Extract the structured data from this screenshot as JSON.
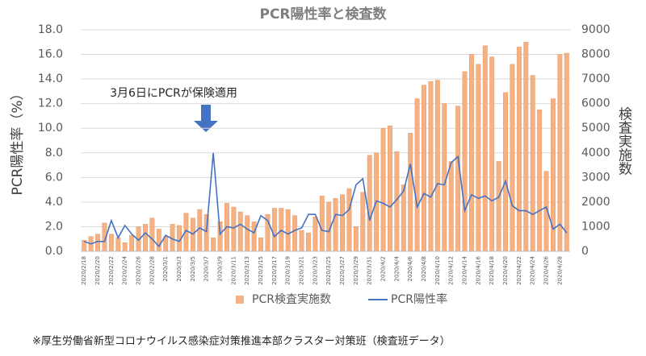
{
  "chart_data": {
    "type": "bar-line",
    "title": "PCR陽性率と検査数",
    "y_label": "PCR陽性率（%）",
    "y2_label": "検査実施数",
    "annotation": "3月6日にPCRが保険適用",
    "footnote": "※厚生労働省新型コロナウイルス感染症対策推進本部クラスター対策班（検査班データ）",
    "categories": [
      "2020/2/18",
      null,
      "2020/2/20",
      null,
      "2020/2/22",
      null,
      "2020/2/24",
      null,
      "2020/2/26",
      null,
      "2020/2/28",
      null,
      "2020/3/1",
      null,
      "2020/3/3",
      null,
      "2020/3/5",
      null,
      "2020/3/7",
      null,
      "2020/3/9",
      null,
      "2020/3/11",
      null,
      "2020/3/13",
      null,
      "2020/3/15",
      null,
      "2020/3/17",
      null,
      "2020/3/19",
      null,
      "2020/3/21",
      null,
      "2020/3/23",
      null,
      "2020/3/25",
      null,
      "2020/3/27",
      null,
      "2020/3/29",
      null,
      "2020/3/31",
      null,
      "2020/4/2",
      null,
      "2020/4/4",
      null,
      "2020/4/6",
      null,
      "2020/4/8",
      null,
      "2020/4/10",
      null,
      "2020/4/12",
      null,
      "2020/4/14",
      null,
      "2020/4/16",
      null,
      "2020/4/18",
      null,
      "2020/4/20",
      null,
      "2020/4/22",
      null,
      "2020/4/24",
      null,
      "2020/4/26",
      null,
      "2020/4/28",
      null
    ],
    "series": [
      {
        "name": "PCR検査実施数",
        "type": "bar",
        "axis": "y2",
        "color": "#f4b183",
        "values": [
          450,
          600,
          700,
          1150,
          700,
          550,
          350,
          650,
          1000,
          1100,
          1350,
          900,
          600,
          1100,
          1050,
          1550,
          1350,
          1700,
          1500,
          550,
          1200,
          1950,
          1800,
          1600,
          1450,
          1200,
          550,
          1500,
          1750,
          1750,
          1700,
          1450,
          850,
          750,
          1400,
          2250,
          2000,
          2150,
          2300,
          2550,
          1000,
          2400,
          3900,
          4000,
          5000,
          5100,
          4050,
          2700,
          4800,
          6200,
          6750,
          6900,
          6950,
          6000,
          3650,
          5900,
          7300,
          8000,
          7600,
          8350,
          7900,
          3650,
          6450,
          7600,
          8300,
          8500,
          7150,
          5750,
          3250,
          6200,
          8000,
          8050
        ]
      },
      {
        "name": "PCR陽性率",
        "type": "line",
        "axis": "y",
        "color": "#4472c4",
        "values": [
          0.8,
          0.6,
          0.8,
          0.8,
          2.5,
          1.1,
          2.1,
          1.4,
          0.9,
          1.5,
          1.0,
          0.4,
          1.3,
          1.0,
          0.8,
          1.7,
          1.4,
          1.9,
          1.6,
          8.0,
          1.4,
          2.0,
          1.9,
          2.2,
          1.8,
          1.5,
          2.9,
          2.5,
          1.2,
          1.7,
          1.4,
          1.7,
          1.9,
          3.0,
          3.0,
          1.7,
          1.6,
          3.0,
          2.9,
          3.4,
          5.4,
          5.9,
          2.5,
          4.1,
          3.9,
          3.6,
          4.2,
          4.9,
          7.1,
          3.6,
          4.7,
          4.4,
          5.5,
          5.4,
          7.2,
          7.7,
          3.3,
          4.6,
          4.3,
          4.5,
          4.1,
          4.4,
          5.7,
          3.7,
          3.3,
          3.3,
          3.0,
          3.3,
          3.6,
          1.8,
          2.2,
          1.5
        ]
      }
    ],
    "ylim": [
      0,
      18
    ],
    "yticks": [
      {
        "value": 0,
        "label": "0.0"
      },
      {
        "value": 2,
        "label": "2.0"
      },
      {
        "value": 4,
        "label": "4.0"
      },
      {
        "value": 6,
        "label": "6.0"
      },
      {
        "value": 8,
        "label": "8.0"
      },
      {
        "value": 10,
        "label": "10.0"
      },
      {
        "value": 12,
        "label": "12.0"
      },
      {
        "value": 14,
        "label": "14.0"
      },
      {
        "value": 16,
        "label": "16.0"
      },
      {
        "value": 18,
        "label": "18.0"
      }
    ],
    "y2lim": [
      0,
      9000
    ],
    "y2ticks": [
      0,
      1000,
      2000,
      3000,
      4000,
      5000,
      6000,
      7000,
      8000,
      9000
    ],
    "grid": true,
    "legend": "bottom"
  }
}
